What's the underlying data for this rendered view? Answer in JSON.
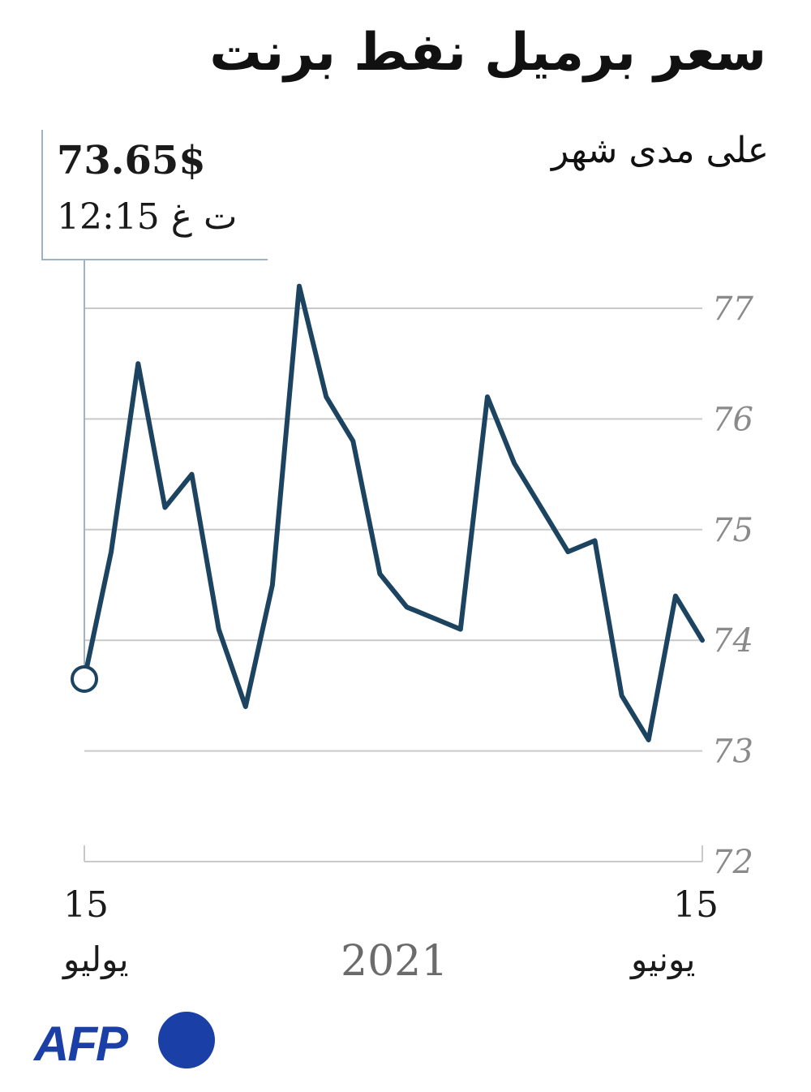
{
  "header": {
    "title": "سعر برميل نفط برنت",
    "subtitle": "على مدى شهر"
  },
  "callout": {
    "value": "73.65$",
    "time": "12:15 ت غ"
  },
  "x_axis": {
    "left_day": "15",
    "left_month": "يوليو",
    "right_day": "15",
    "right_month": "يونيو",
    "year": "2021"
  },
  "logo": {
    "text": "AFP"
  },
  "colors": {
    "line": "#1c4461",
    "grid": "#c9c9c9",
    "tick_text": "#8a8a8a",
    "logo_blue": "#1a3fa6"
  },
  "chart_data": {
    "type": "line",
    "title": "سعر برميل نفط برنت",
    "subtitle": "على مدى شهر",
    "xlabel": "",
    "ylabel": "",
    "ylim": [
      72,
      77
    ],
    "yticks": [
      "72",
      "73",
      "74",
      "75",
      "76",
      "77"
    ],
    "x_direction": "right-to-left",
    "series": [
      {
        "values": [
          74.0,
          74.4,
          73.1,
          73.5,
          74.9,
          74.8,
          75.2,
          75.6,
          76.2,
          74.1,
          74.2,
          74.3,
          74.6,
          75.8,
          76.2,
          77.2,
          74.5,
          73.4,
          74.1,
          75.5,
          75.2,
          76.5,
          74.8,
          73.65
        ]
      }
    ],
    "last_point": {
      "value": 73.65,
      "marker": "open-circle"
    },
    "grid": true,
    "legend": "none"
  }
}
